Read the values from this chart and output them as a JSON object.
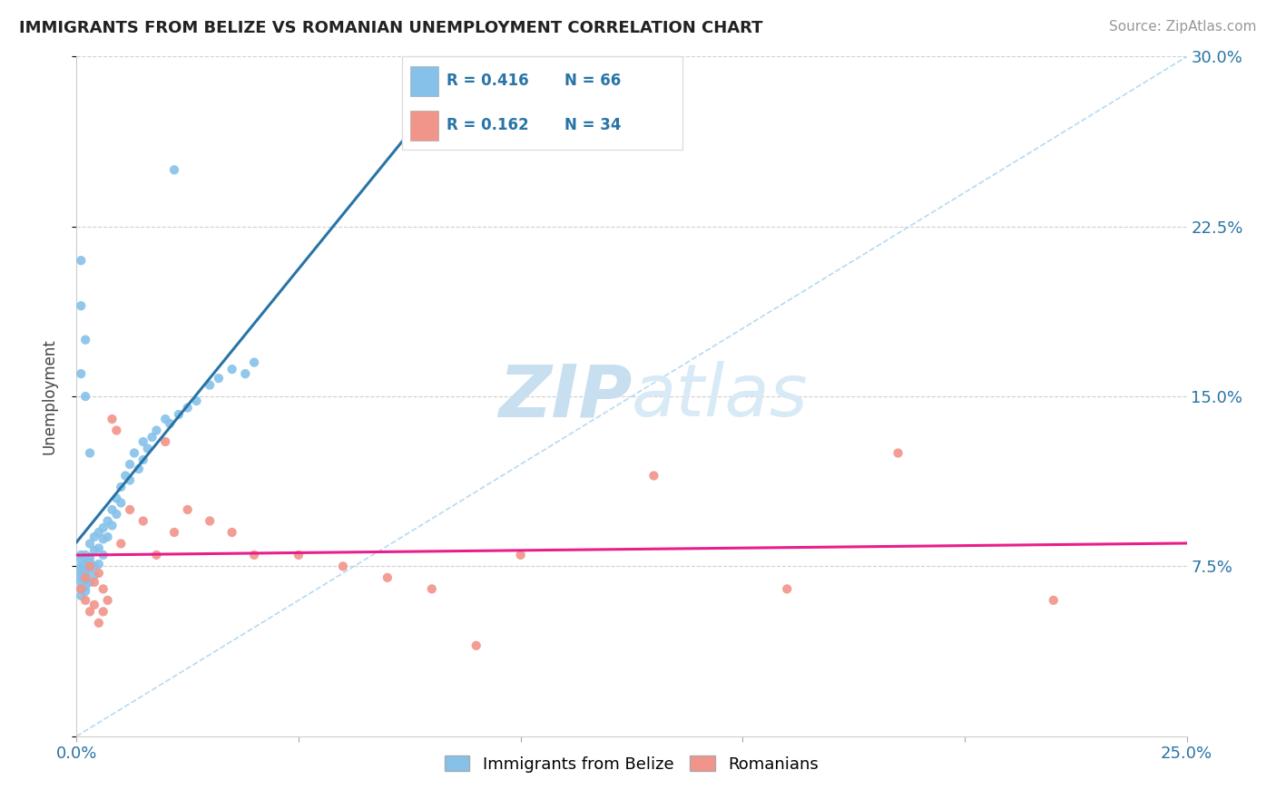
{
  "title": "IMMIGRANTS FROM BELIZE VS ROMANIAN UNEMPLOYMENT CORRELATION CHART",
  "source_text": "Source: ZipAtlas.com",
  "ylabel": "Unemployment",
  "xlim": [
    0.0,
    0.25
  ],
  "ylim": [
    0.0,
    0.3
  ],
  "legend_R1": "R = 0.416",
  "legend_N1": "N = 66",
  "legend_R2": "R = 0.162",
  "legend_N2": "N = 34",
  "legend_label1": "Immigrants from Belize",
  "legend_label2": "Romanians",
  "blue_color": "#85C1E9",
  "pink_color": "#F1948A",
  "blue_line_color": "#2874A6",
  "pink_line_color": "#E91E8C",
  "diag_color": "#AED6F1",
  "watermark_zip": "ZIP",
  "watermark_atlas": "atlas",
  "blue_x": [
    0.001,
    0.001,
    0.001,
    0.001,
    0.001,
    0.001,
    0.001,
    0.001,
    0.001,
    0.002,
    0.002,
    0.002,
    0.002,
    0.002,
    0.002,
    0.002,
    0.003,
    0.003,
    0.003,
    0.003,
    0.003,
    0.004,
    0.004,
    0.004,
    0.004,
    0.005,
    0.005,
    0.005,
    0.006,
    0.006,
    0.006,
    0.007,
    0.007,
    0.008,
    0.008,
    0.009,
    0.009,
    0.01,
    0.01,
    0.011,
    0.012,
    0.012,
    0.013,
    0.014,
    0.015,
    0.015,
    0.016,
    0.017,
    0.018,
    0.02,
    0.021,
    0.022,
    0.023,
    0.025,
    0.027,
    0.03,
    0.032,
    0.035,
    0.038,
    0.04,
    0.001,
    0.002,
    0.001,
    0.003,
    0.001,
    0.002
  ],
  "blue_y": [
    0.075,
    0.078,
    0.072,
    0.08,
    0.068,
    0.065,
    0.07,
    0.074,
    0.062,
    0.076,
    0.073,
    0.069,
    0.08,
    0.066,
    0.071,
    0.064,
    0.085,
    0.079,
    0.074,
    0.068,
    0.077,
    0.082,
    0.075,
    0.088,
    0.071,
    0.09,
    0.083,
    0.076,
    0.092,
    0.087,
    0.08,
    0.095,
    0.088,
    0.1,
    0.093,
    0.105,
    0.098,
    0.11,
    0.103,
    0.115,
    0.12,
    0.113,
    0.125,
    0.118,
    0.13,
    0.122,
    0.127,
    0.132,
    0.135,
    0.14,
    0.138,
    0.25,
    0.142,
    0.145,
    0.148,
    0.155,
    0.158,
    0.162,
    0.16,
    0.165,
    0.16,
    0.175,
    0.19,
    0.125,
    0.21,
    0.15
  ],
  "pink_x": [
    0.001,
    0.002,
    0.002,
    0.003,
    0.003,
    0.004,
    0.004,
    0.005,
    0.005,
    0.006,
    0.006,
    0.007,
    0.008,
    0.009,
    0.01,
    0.012,
    0.015,
    0.018,
    0.02,
    0.022,
    0.025,
    0.03,
    0.035,
    0.04,
    0.05,
    0.06,
    0.07,
    0.08,
    0.09,
    0.1,
    0.13,
    0.16,
    0.185,
    0.22
  ],
  "pink_y": [
    0.065,
    0.07,
    0.06,
    0.075,
    0.055,
    0.068,
    0.058,
    0.072,
    0.05,
    0.065,
    0.055,
    0.06,
    0.14,
    0.135,
    0.085,
    0.1,
    0.095,
    0.08,
    0.13,
    0.09,
    0.1,
    0.095,
    0.09,
    0.08,
    0.08,
    0.075,
    0.07,
    0.065,
    0.04,
    0.08,
    0.115,
    0.065,
    0.125,
    0.06
  ]
}
